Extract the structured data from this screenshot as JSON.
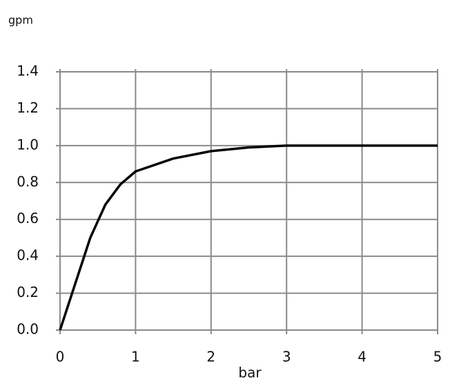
{
  "chart_data": {
    "type": "line",
    "y_label": "gpm",
    "x_label": "bar",
    "x": [
      0,
      0.2,
      0.4,
      0.6,
      0.8,
      1,
      1.5,
      2,
      2.5,
      3,
      4,
      5
    ],
    "values": [
      0,
      0.25,
      0.5,
      0.68,
      0.79,
      0.86,
      0.93,
      0.97,
      0.99,
      1.0,
      1.0,
      1.0
    ],
    "color": "#000000",
    "xlim": [
      0,
      5
    ],
    "xticks": [
      0,
      1,
      2,
      3,
      4,
      5
    ],
    "ylim": [
      0,
      1.4
    ],
    "yticks": [
      {
        "value": 0,
        "label": "0.0"
      },
      0.2,
      0.4,
      0.6,
      0.8,
      {
        "value": 1,
        "label": "1.0"
      },
      1.2,
      1.4
    ],
    "grid": true
  }
}
